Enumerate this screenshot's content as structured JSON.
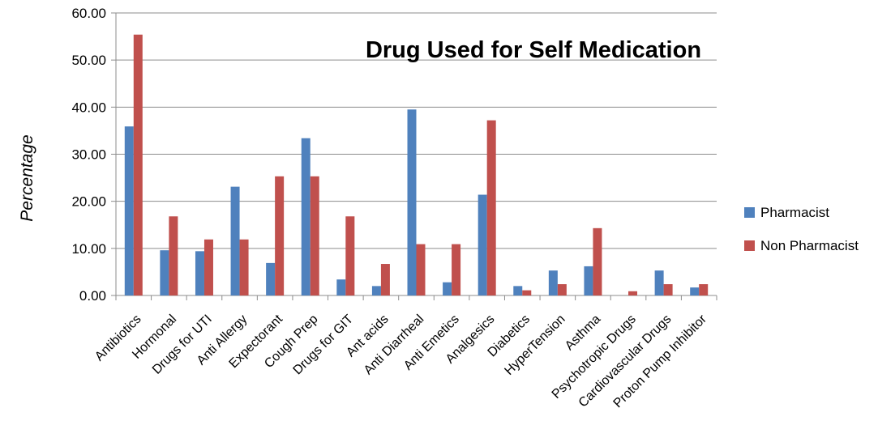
{
  "chart_data": {
    "type": "bar",
    "title": "Drug Used for Self Medication",
    "xlabel": "",
    "ylabel": "Percentage",
    "ylim": [
      0,
      60
    ],
    "yticks": [
      "0.00",
      "10.00",
      "20.00",
      "30.00",
      "40.00",
      "50.00",
      "60.00"
    ],
    "grid": true,
    "legend_position": "right",
    "categories": [
      "Antibiotics",
      "Hormonal",
      "Drugs for UTI",
      "Anti Allergy",
      "Expectorant",
      "Cough Prep",
      "Drugs for GIT",
      "Ant acids",
      "Anti Diarrheal",
      "Anti Emetics",
      "Analgesics",
      "Diabetics",
      "HyperTension",
      "Asthma",
      "Psychotropic Drugs",
      "Cardiovascular Drugs",
      "Proton Pump Inhibitor"
    ],
    "series": [
      {
        "name": "Pharmacist",
        "color": "#4F81BD",
        "values": [
          35.9,
          9.6,
          9.4,
          23.1,
          6.9,
          33.4,
          3.4,
          2.0,
          39.5,
          2.8,
          21.4,
          2.0,
          5.3,
          6.2,
          0.0,
          5.3,
          1.7
        ]
      },
      {
        "name": "Non Pharmacist",
        "color": "#C0504D",
        "values": [
          55.4,
          16.8,
          11.9,
          11.9,
          25.3,
          25.3,
          16.8,
          6.7,
          10.9,
          10.9,
          37.2,
          1.1,
          2.4,
          14.3,
          0.9,
          2.4,
          2.4
        ]
      }
    ]
  }
}
